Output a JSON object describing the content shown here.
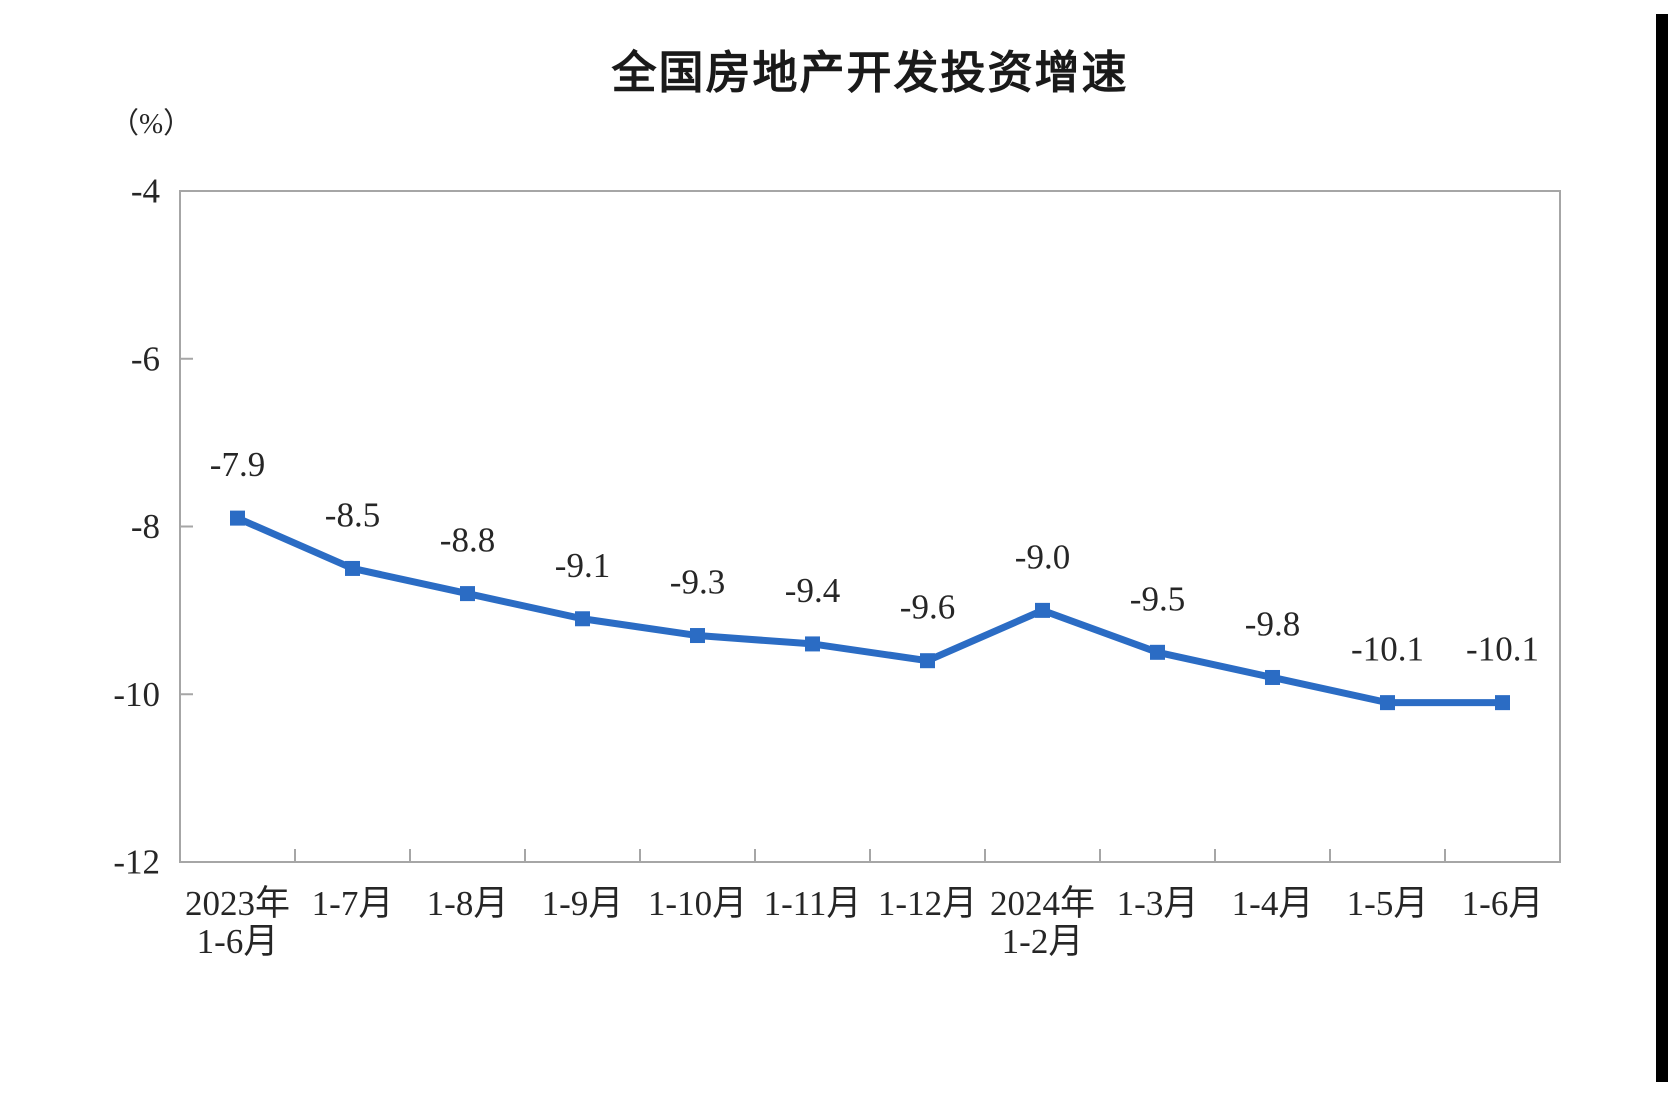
{
  "page": {
    "background": "#ffffff"
  },
  "chart_data": {
    "type": "line",
    "title": "全国房地产开发投资增速",
    "unit_label": "（%）",
    "categories": [
      "2023年\n1-6月",
      "1-7月",
      "1-8月",
      "1-9月",
      "1-10月",
      "1-11月",
      "1-12月",
      "2024年\n1-2月",
      "1-3月",
      "1-4月",
      "1-5月",
      "1-6月"
    ],
    "series": [
      {
        "name": "全国房地产开发投资增速",
        "values": [
          -7.9,
          -8.5,
          -8.8,
          -9.1,
          -9.3,
          -9.4,
          -9.6,
          -9.0,
          -9.5,
          -9.8,
          -10.1,
          -10.1
        ]
      }
    ],
    "data_labels": [
      "-7.9",
      "-8.5",
      "-8.8",
      "-9.1",
      "-9.3",
      "-9.4",
      "-9.6",
      "-9.0",
      "-9.5",
      "-9.8",
      "-10.1",
      "-10.1"
    ],
    "ylim": [
      -12,
      -4
    ],
    "yticks": [
      -4,
      -6,
      -8,
      -10,
      -12
    ],
    "ytick_labels": [
      "-4",
      "-6",
      "-8",
      "-10",
      "-12"
    ],
    "xlabel": "",
    "ylabel": "",
    "grid": false,
    "legend": "none",
    "marker": "square",
    "colors": {
      "line": "#2b6cc4",
      "marker": "#2b6cc4",
      "axis": "#a6a6a6",
      "text": "#262626",
      "title": "#1a1a1a"
    }
  }
}
